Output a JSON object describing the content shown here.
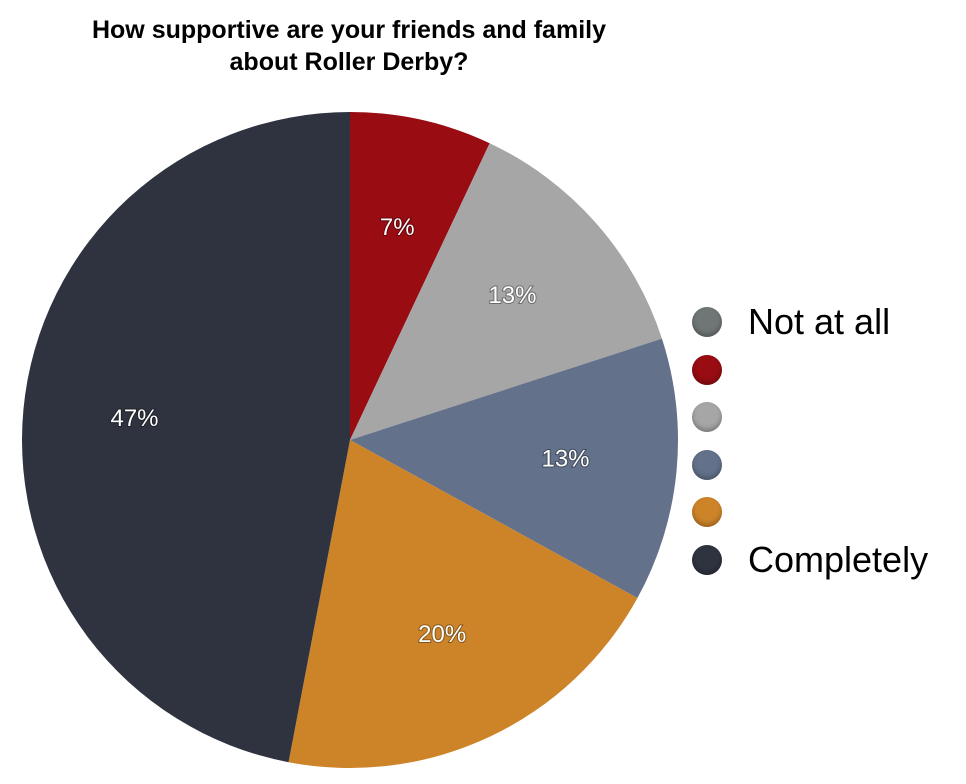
{
  "chart_data": {
    "type": "pie",
    "title_lines": [
      "How supportive are your friends and family",
      "about Roller Derby?"
    ],
    "slices": [
      {
        "label": "Not at all",
        "value": 0,
        "value_label": "",
        "color": "#6f7675"
      },
      {
        "label": "",
        "value": 7,
        "value_label": "7%",
        "color": "#980c12"
      },
      {
        "label": "",
        "value": 13,
        "value_label": "13%",
        "color": "#a6a6a6"
      },
      {
        "label": "",
        "value": 13,
        "value_label": "13%",
        "color": "#63718b"
      },
      {
        "label": "",
        "value": 20,
        "value_label": "20%",
        "color": "#cd8429"
      },
      {
        "label": "Completely",
        "value": 47,
        "value_label": "47%",
        "color": "#2f3340"
      }
    ],
    "legend_position": "right"
  }
}
